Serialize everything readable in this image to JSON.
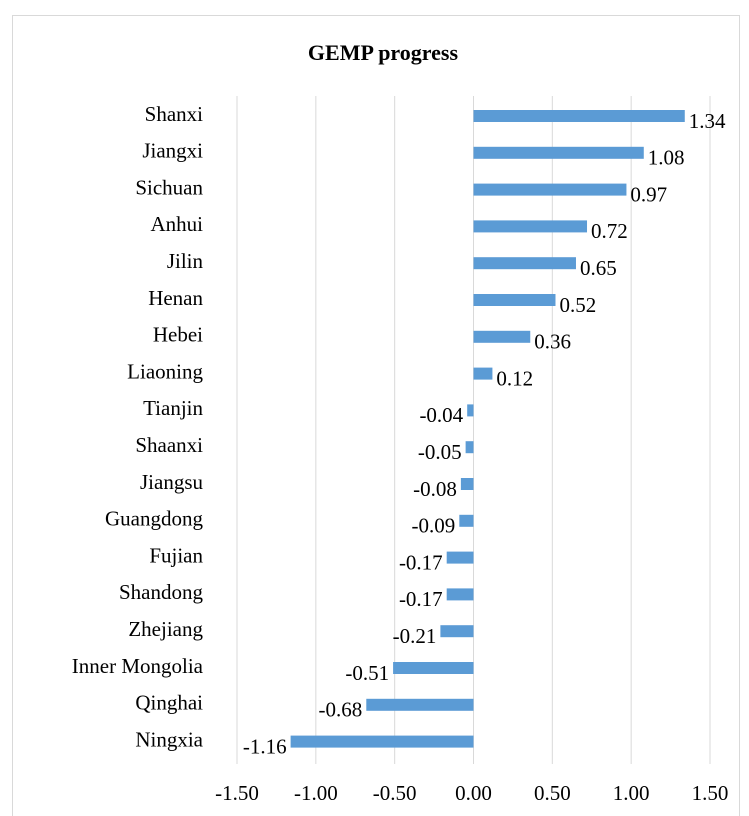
{
  "chart_data": {
    "type": "bar",
    "orientation": "horizontal",
    "title": "GEMP progress",
    "categories": [
      "Shanxi",
      "Jiangxi",
      "Sichuan",
      "Anhui",
      "Jilin",
      "Henan",
      "Hebei",
      "Liaoning",
      "Tianjin",
      "Shaanxi",
      "Jiangsu",
      "Guangdong",
      "Fujian",
      "Shandong",
      "Zhejiang",
      "Inner Mongolia",
      "Qinghai",
      "Ningxia"
    ],
    "values": [
      1.34,
      1.08,
      0.97,
      0.72,
      0.65,
      0.52,
      0.36,
      0.12,
      -0.04,
      -0.05,
      -0.08,
      -0.09,
      -0.17,
      -0.17,
      -0.21,
      -0.51,
      -0.68,
      -1.16
    ],
    "color": "#5b9bd5",
    "xlim": [
      -1.5,
      1.5
    ],
    "xticks": [
      {
        "value": -1.5,
        "label": "-1.50"
      },
      {
        "value": -1.0,
        "label": "-1.00"
      },
      {
        "value": -0.5,
        "label": "-0.50"
      },
      {
        "value": 0,
        "label": "0.00"
      },
      {
        "value": 0.5,
        "label": "0.50"
      },
      {
        "value": 1.0,
        "label": "1.00"
      },
      {
        "value": 1.5,
        "label": "1.50"
      }
    ],
    "grid": true
  }
}
